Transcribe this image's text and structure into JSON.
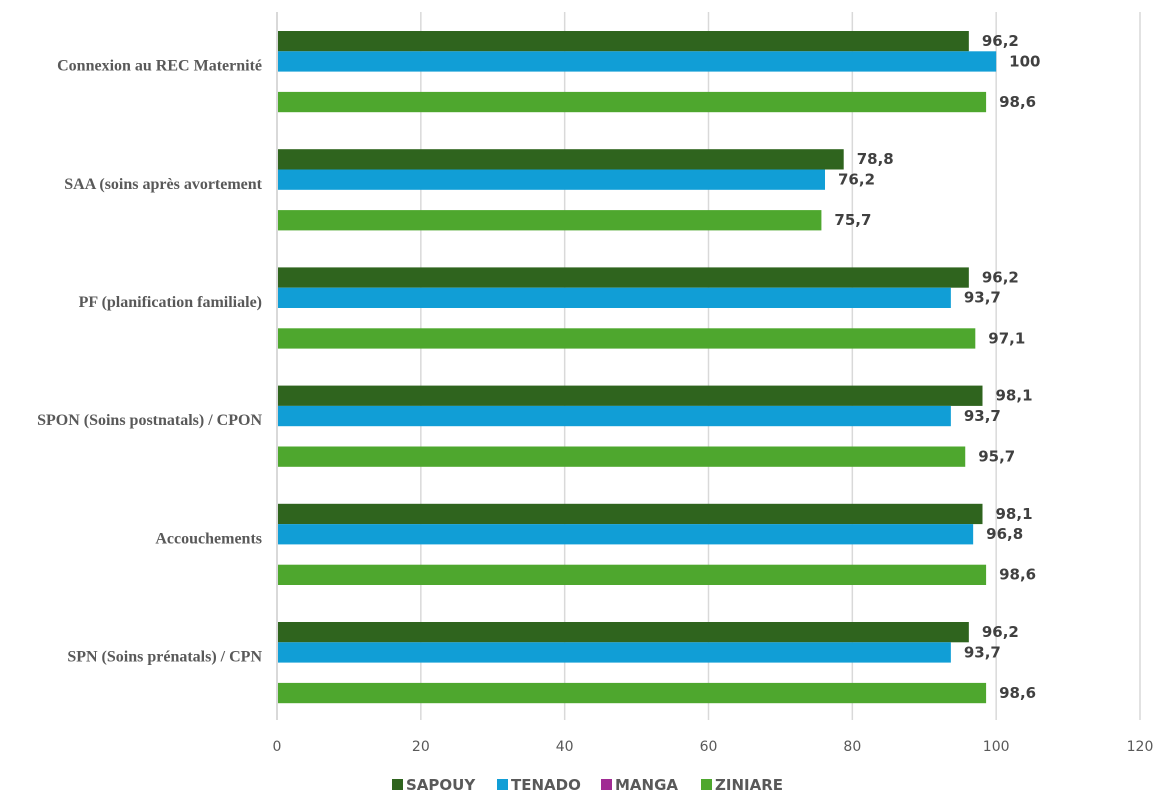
{
  "chart_data": {
    "type": "bar",
    "orientation": "horizontal",
    "title": "",
    "xlabel": "",
    "ylabel": "",
    "xlim": [
      0,
      120
    ],
    "x_ticks": [
      0,
      20,
      40,
      60,
      80,
      100,
      120
    ],
    "x_tick_labels": [
      "0",
      "20",
      "40",
      "60",
      "80",
      "100",
      "120"
    ],
    "grid": true,
    "legend_position": "bottom",
    "categories": [
      "Connexion au REC Maternité",
      "SAA (soins après avortement",
      "PF (planification familiale)",
      "SPON (Soins postnatals) / CPON",
      "Accouchements",
      "SPN (Soins prénatals) / CPN"
    ],
    "series": [
      {
        "name": "SAPOUY",
        "color": "#2f641e",
        "values": [
          96.2,
          78.8,
          96.2,
          98.1,
          98.1,
          96.2
        ],
        "labels": [
          "96,2",
          "78,8",
          "96,2",
          "98,1",
          "98,1",
          "96,2"
        ]
      },
      {
        "name": "TENADO",
        "color": "#119ed6",
        "values": [
          100,
          76.2,
          93.7,
          93.7,
          96.8,
          93.7
        ],
        "labels": [
          "100",
          "76,2",
          "93,7",
          "93,7",
          "96,8",
          "93,7"
        ]
      },
      {
        "name": "MANGA",
        "color": "#a02b93",
        "values": [
          null,
          null,
          null,
          null,
          null,
          null
        ],
        "labels": []
      },
      {
        "name": "ZINIARE",
        "color": "#4ea72e",
        "values": [
          98.6,
          75.7,
          97.1,
          95.7,
          98.6,
          98.6
        ],
        "labels": [
          "98,6",
          "75,7",
          "97,1",
          "95,7",
          "98,6",
          "98,6"
        ]
      }
    ]
  }
}
